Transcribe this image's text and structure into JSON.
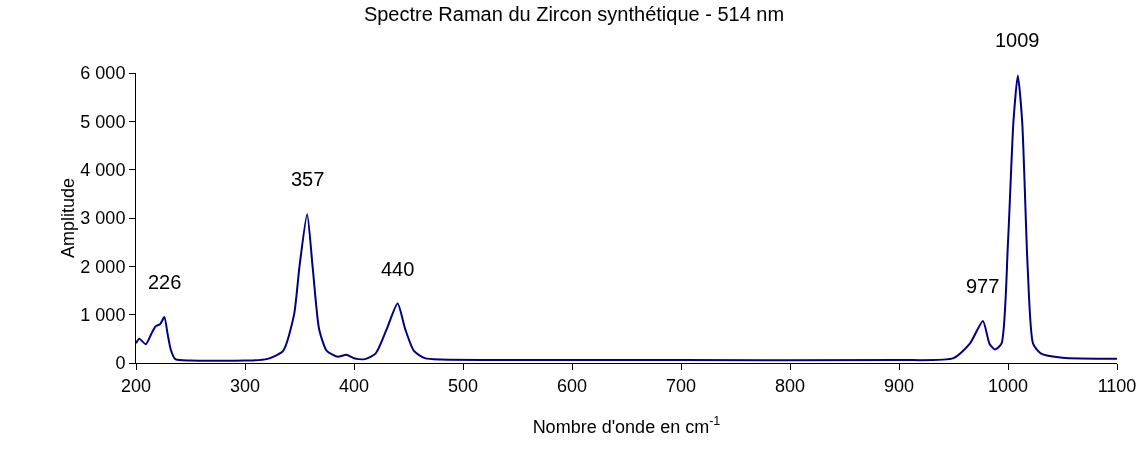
{
  "chart_data": {
    "type": "line",
    "title": "Spectre Raman du Zircon synthétique - 514 nm",
    "xlabel": "Nombre d'onde en cm$^{-1}$",
    "ylabel": "Amplitude",
    "x": [
      200,
      203,
      209,
      214,
      218,
      222,
      226,
      229,
      232,
      236,
      250,
      300,
      320,
      335,
      345,
      350,
      357,
      362,
      368,
      375,
      385,
      393,
      400,
      410,
      420,
      430,
      440,
      447,
      455,
      465,
      480,
      600,
      700,
      900,
      950,
      965,
      977,
      983,
      988,
      994,
      1000,
      1005,
      1009,
      1013,
      1018,
      1023,
      1030,
      1050,
      1100
    ],
    "series": [
      {
        "color": "#000080",
        "values": [
          410,
          500,
          390,
          600,
          760,
          800,
          950,
          600,
          270,
          80,
          50,
          50,
          80,
          250,
          1000,
          2000,
          3080,
          2000,
          700,
          250,
          130,
          170,
          100,
          80,
          200,
          700,
          1230,
          700,
          250,
          100,
          70,
          60,
          60,
          60,
          100,
          400,
          870,
          400,
          280,
          400,
          2500,
          5000,
          5950,
          5000,
          2000,
          400,
          200,
          110,
          90
        ]
      }
    ],
    "annotations": [
      {
        "text": "226",
        "x": 226,
        "y": 950
      },
      {
        "text": "357",
        "x": 357,
        "y": 3080
      },
      {
        "text": "440",
        "x": 440,
        "y": 1230
      },
      {
        "text": "977",
        "x": 977,
        "y": 870
      },
      {
        "text": "1009",
        "x": 1009,
        "y": 5950
      }
    ],
    "xlim": [
      200,
      1100
    ],
    "xticks": [
      200,
      300,
      400,
      500,
      600,
      700,
      800,
      900,
      1000,
      1100
    ],
    "ylim": [
      0,
      6000
    ],
    "yticks": [
      {
        "value": 0,
        "label": "0"
      },
      {
        "value": 1000,
        "label": "1 000"
      },
      {
        "value": 2000,
        "label": "2 000"
      },
      {
        "value": 3000,
        "label": "3 000"
      },
      {
        "value": 4000,
        "label": "4 000"
      },
      {
        "value": 5000,
        "label": "5 000"
      },
      {
        "value": 6000,
        "label": "6 000"
      }
    ],
    "grid": false,
    "marker": "none",
    "line_style": "solid"
  }
}
